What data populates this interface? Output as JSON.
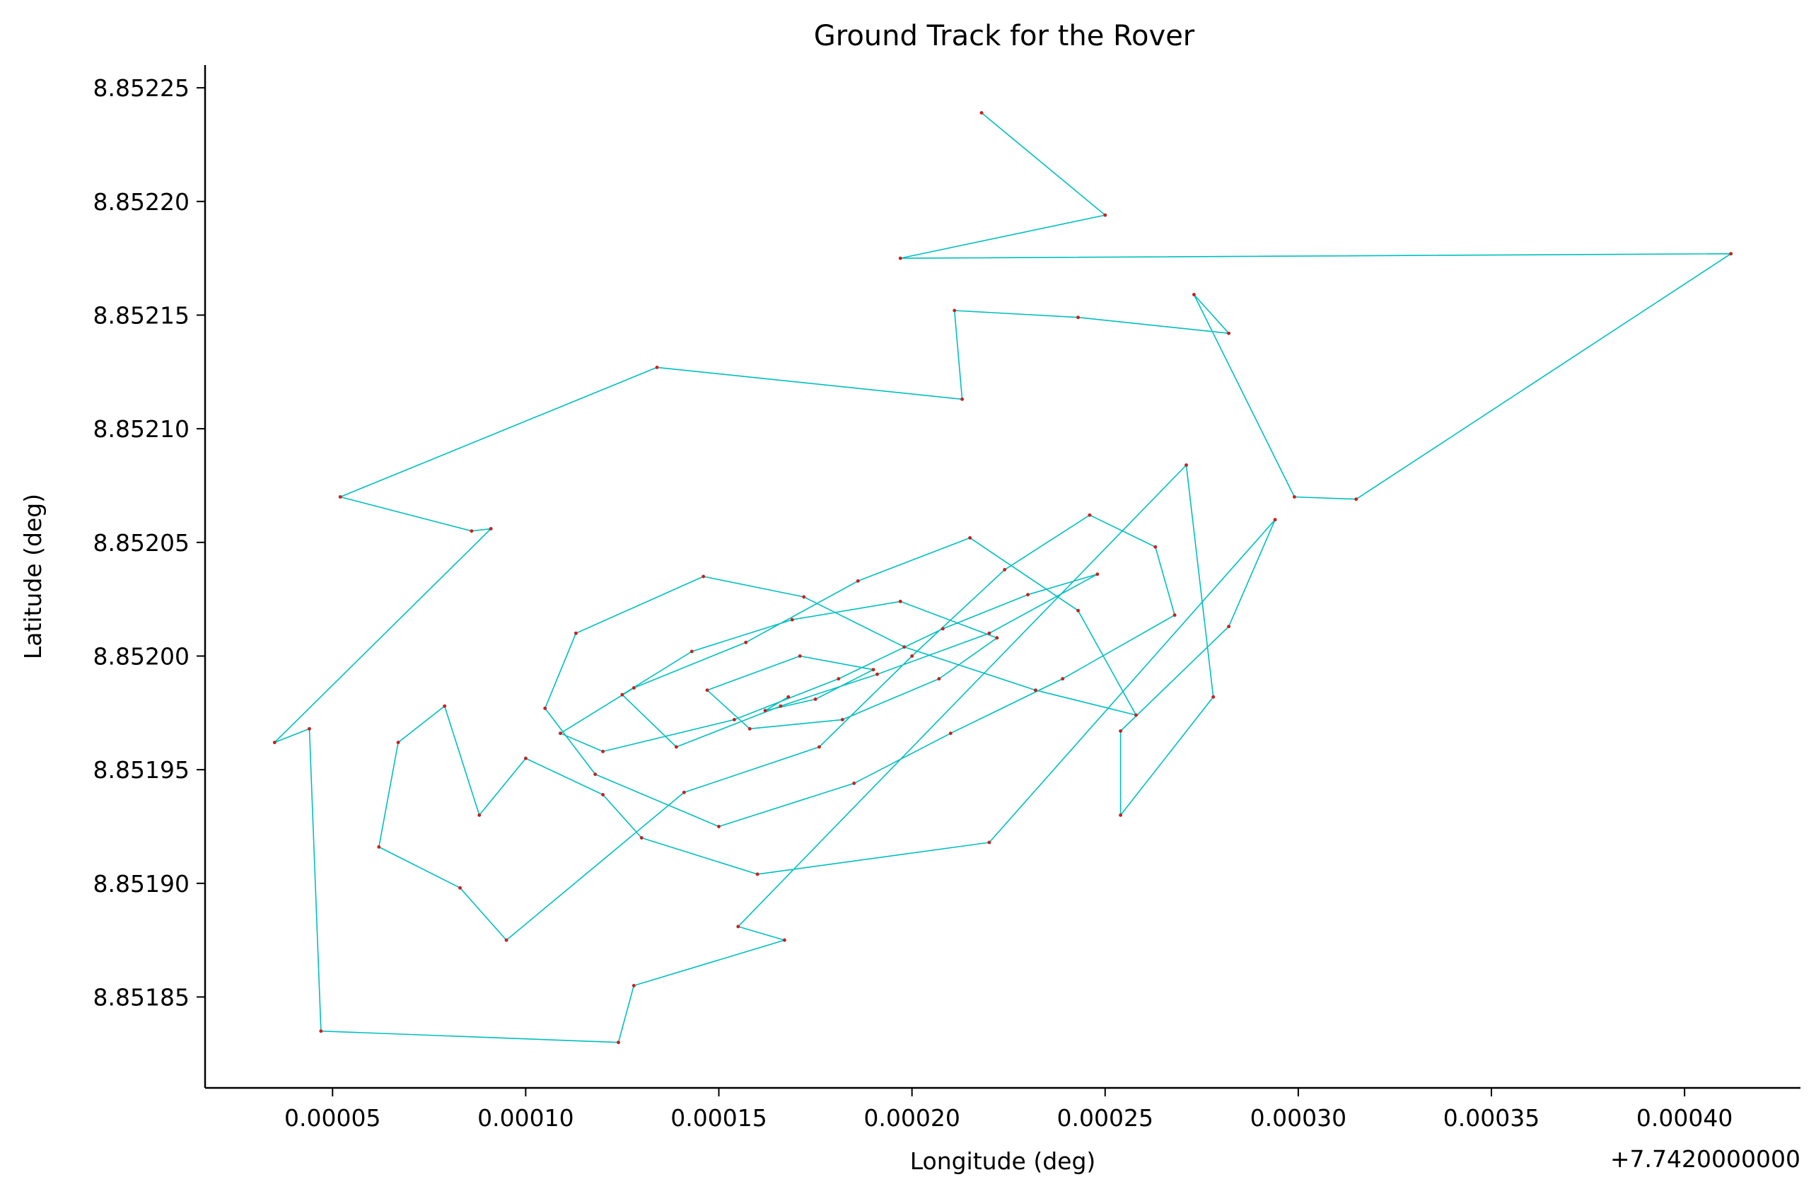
{
  "chart_data": {
    "type": "line",
    "title": "Ground Track for the Rover",
    "xlabel": "Longitude (deg)",
    "ylabel": "Latitude (deg)",
    "x_offset_label": "+7.7420000000",
    "xlim": [
      1.7e-05,
      0.00043
    ],
    "ylim": [
      8.85181,
      8.85226
    ],
    "x_ticks": [
      5e-05,
      0.0001,
      0.00015,
      0.0002,
      0.00025,
      0.0003,
      0.00035,
      0.0004
    ],
    "x_tick_labels": [
      "0.00005",
      "0.00010",
      "0.00015",
      "0.00020",
      "0.00025",
      "0.00030",
      "0.00035",
      "0.00040"
    ],
    "y_ticks": [
      8.85185,
      8.8519,
      8.85195,
      8.852,
      8.85205,
      8.8521,
      8.85215,
      8.8522,
      8.85225
    ],
    "y_tick_labels": [
      "8.85185",
      "8.85190",
      "8.85195",
      "8.85200",
      "8.85205",
      "8.85210",
      "8.85215",
      "8.85220",
      "8.85225"
    ],
    "grid": false,
    "line_color": "#00bfbf",
    "marker_color": "#ff0000",
    "series": [
      {
        "x": [
          0.000218,
          0.00025,
          0.000197,
          0.000412,
          0.000315,
          0.000299,
          0.000273,
          0.000282,
          0.000243,
          0.000211,
          0.000213,
          0.000134,
          5.2e-05,
          8.6e-05,
          9.1e-05,
          3.5e-05,
          4.4e-05,
          4.7e-05,
          0.000124,
          0.000128,
          0.000167,
          0.000155,
          0.000271,
          0.000278,
          0.000254,
          0.000254,
          0.000282,
          0.000294,
          0.00022,
          0.00016,
          0.00013,
          0.00012,
          0.0001,
          8.8e-05,
          7.9e-05,
          6.7e-05,
          6.2e-05,
          8.3e-05,
          9.5e-05,
          0.000141,
          0.000176,
          0.0002,
          0.000224,
          0.000246,
          0.000263,
          0.000268,
          0.000239,
          0.00021,
          0.000185,
          0.00015,
          0.000118,
          0.000105,
          0.000113,
          0.000146,
          0.000172,
          0.000198,
          0.000232,
          0.000258,
          0.000243,
          0.000215,
          0.000186,
          0.000157,
          0.000128,
          0.000109,
          0.00012,
          0.000154,
          0.000181,
          0.000208,
          0.00023,
          0.000248,
          0.00022,
          0.000191,
          0.000166,
          0.000139,
          0.000125,
          0.000143,
          0.000169,
          0.000197,
          0.000222,
          0.000207,
          0.000182,
          0.000158,
          0.000147,
          0.000171,
          0.00019,
          0.000175,
          0.000162,
          0.000168
        ],
        "y": [
          8.852239,
          8.852194,
          8.852175,
          8.852177,
          8.852069,
          8.85207,
          8.852159,
          8.852142,
          8.852149,
          8.852152,
          8.852113,
          8.852127,
          8.85207,
          8.852055,
          8.852056,
          8.851962,
          8.851968,
          8.851835,
          8.85183,
          8.851855,
          8.851875,
          8.851881,
          8.852084,
          8.851982,
          8.85193,
          8.851967,
          8.852013,
          8.85206,
          8.851918,
          8.851904,
          8.85192,
          8.851939,
          8.851955,
          8.85193,
          8.851978,
          8.851962,
          8.851916,
          8.851898,
          8.851875,
          8.85194,
          8.85196,
          8.852,
          8.852038,
          8.852062,
          8.852048,
          8.852018,
          8.85199,
          8.851966,
          8.851944,
          8.851925,
          8.851948,
          8.851977,
          8.85201,
          8.852035,
          8.852026,
          8.852004,
          8.851985,
          8.851974,
          8.85202,
          8.852052,
          8.852033,
          8.852006,
          8.851986,
          8.851966,
          8.851958,
          8.851972,
          8.85199,
          8.852012,
          8.852027,
          8.852036,
          8.85201,
          8.851992,
          8.851978,
          8.85196,
          8.851983,
          8.852002,
          8.852016,
          8.852024,
          8.852008,
          8.85199,
          8.851972,
          8.851968,
          8.851985,
          8.852,
          8.851994,
          8.851981,
          8.851976,
          8.851982
        ]
      }
    ]
  }
}
